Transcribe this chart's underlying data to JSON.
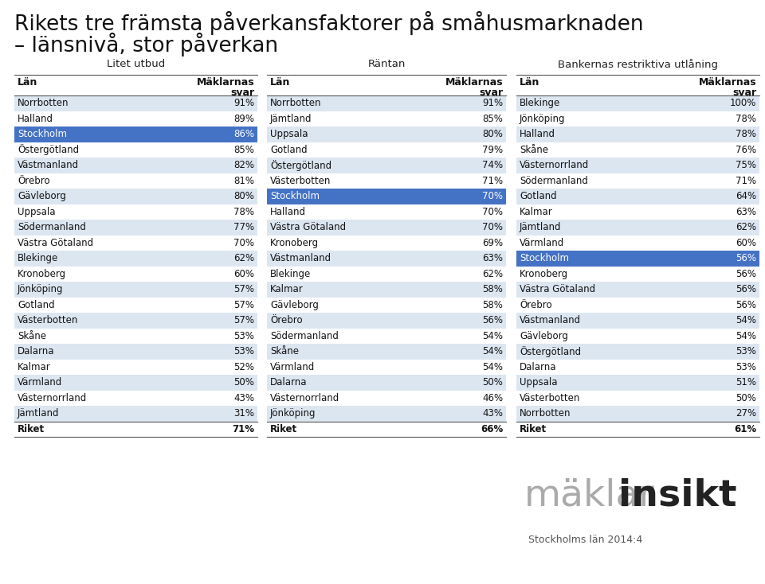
{
  "title_line1": "Rikets tre främsta påverkansfaktorer på småhusmarknaden",
  "title_line2": "– länsnivå, stor påverkan",
  "col1_header": "Litet utbud",
  "col2_header": "Räntan",
  "col3_header": "Bankernas restriktiva utlåning",
  "col1_data": [
    [
      "Norrbotten",
      "91%"
    ],
    [
      "Halland",
      "89%"
    ],
    [
      "Stockholm",
      "86%"
    ],
    [
      "Östergötland",
      "85%"
    ],
    [
      "Västmanland",
      "82%"
    ],
    [
      "Örebro",
      "81%"
    ],
    [
      "Gävleborg",
      "80%"
    ],
    [
      "Uppsala",
      "78%"
    ],
    [
      "Södermanland",
      "77%"
    ],
    [
      "Västra Götaland",
      "70%"
    ],
    [
      "Blekinge",
      "62%"
    ],
    [
      "Kronoberg",
      "60%"
    ],
    [
      "Jönköping",
      "57%"
    ],
    [
      "Gotland",
      "57%"
    ],
    [
      "Västerbotten",
      "57%"
    ],
    [
      "Skåne",
      "53%"
    ],
    [
      "Dalarna",
      "53%"
    ],
    [
      "Kalmar",
      "52%"
    ],
    [
      "Värmland",
      "50%"
    ],
    [
      "Västernorrland",
      "43%"
    ],
    [
      "Jämtland",
      "31%"
    ],
    [
      "Riket",
      "71%"
    ]
  ],
  "col1_highlight": 2,
  "col2_data": [
    [
      "Norrbotten",
      "91%"
    ],
    [
      "Jämtland",
      "85%"
    ],
    [
      "Uppsala",
      "80%"
    ],
    [
      "Gotland",
      "79%"
    ],
    [
      "Östergötland",
      "74%"
    ],
    [
      "Västerbotten",
      "71%"
    ],
    [
      "Stockholm",
      "70%"
    ],
    [
      "Halland",
      "70%"
    ],
    [
      "Västra Götaland",
      "70%"
    ],
    [
      "Kronoberg",
      "69%"
    ],
    [
      "Västmanland",
      "63%"
    ],
    [
      "Blekinge",
      "62%"
    ],
    [
      "Kalmar",
      "58%"
    ],
    [
      "Gävleborg",
      "58%"
    ],
    [
      "Örebro",
      "56%"
    ],
    [
      "Södermanland",
      "54%"
    ],
    [
      "Skåne",
      "54%"
    ],
    [
      "Värmland",
      "54%"
    ],
    [
      "Dalarna",
      "50%"
    ],
    [
      "Västernorrland",
      "46%"
    ],
    [
      "Jönköping",
      "43%"
    ],
    [
      "Riket",
      "66%"
    ]
  ],
  "col2_highlight": 6,
  "col3_data": [
    [
      "Blekinge",
      "100%"
    ],
    [
      "Jönköping",
      "78%"
    ],
    [
      "Halland",
      "78%"
    ],
    [
      "Skåne",
      "76%"
    ],
    [
      "Västernorrland",
      "75%"
    ],
    [
      "Södermanland",
      "71%"
    ],
    [
      "Gotland",
      "64%"
    ],
    [
      "Kalmar",
      "63%"
    ],
    [
      "Jämtland",
      "62%"
    ],
    [
      "Värmland",
      "60%"
    ],
    [
      "Stockholm",
      "56%"
    ],
    [
      "Kronoberg",
      "56%"
    ],
    [
      "Västra Götaland",
      "56%"
    ],
    [
      "Örebro",
      "56%"
    ],
    [
      "Västmanland",
      "54%"
    ],
    [
      "Gävleborg",
      "54%"
    ],
    [
      "Östergötland",
      "53%"
    ],
    [
      "Dalarna",
      "53%"
    ],
    [
      "Uppsala",
      "51%"
    ],
    [
      "Västerbotten",
      "50%"
    ],
    [
      "Norrbotten",
      "27%"
    ],
    [
      "Riket",
      "61%"
    ]
  ],
  "col3_highlight": 10,
  "highlight_color": "#4472c4",
  "highlight_text_color": "#ffffff",
  "row_alt_color": "#dce6f1",
  "row_white_color": "#ffffff",
  "logo_gray": "#aaaaaa",
  "logo_dark": "#222222",
  "footer_text": "Stockholms län 2014:4",
  "bg_color": "#ffffff"
}
